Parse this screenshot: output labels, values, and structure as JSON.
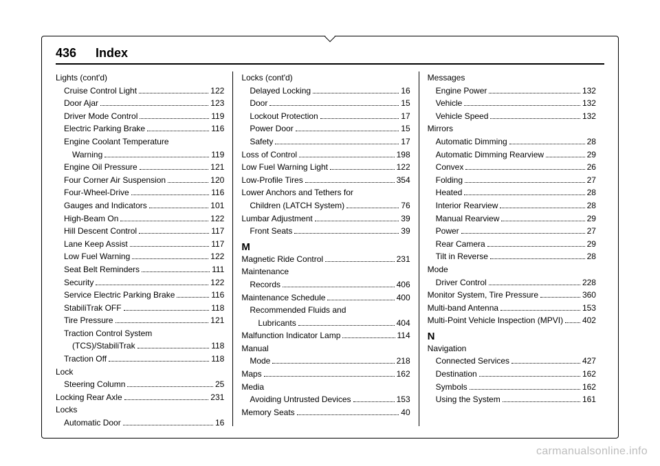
{
  "header": {
    "page_number": "436",
    "section": "Index"
  },
  "watermark": "carmanualsonline.info",
  "columns": [
    [
      {
        "type": "heading",
        "indent": 0,
        "label": "Lights (cont'd)"
      },
      {
        "indent": 1,
        "label": "Cruise Control Light",
        "page": "122"
      },
      {
        "indent": 1,
        "label": "Door Ajar",
        "page": "123"
      },
      {
        "indent": 1,
        "label": "Driver Mode Control",
        "page": "119"
      },
      {
        "indent": 1,
        "label": "Electric Parking Brake",
        "page": "116"
      },
      {
        "type": "heading",
        "indent": 1,
        "label": "Engine Coolant Temperature"
      },
      {
        "indent": 2,
        "label": "Warning",
        "page": "119"
      },
      {
        "indent": 1,
        "label": "Engine Oil Pressure",
        "page": "121"
      },
      {
        "indent": 1,
        "label": "Four Corner Air Suspension",
        "page": "120"
      },
      {
        "indent": 1,
        "label": "Four-Wheel-Drive",
        "page": "116"
      },
      {
        "indent": 1,
        "label": "Gauges and Indicators",
        "page": "101"
      },
      {
        "indent": 1,
        "label": "High-Beam On",
        "page": "122"
      },
      {
        "indent": 1,
        "label": "Hill Descent Control",
        "page": "117"
      },
      {
        "indent": 1,
        "label": "Lane Keep Assist",
        "page": "117"
      },
      {
        "indent": 1,
        "label": "Low Fuel Warning",
        "page": "122"
      },
      {
        "indent": 1,
        "label": "Seat Belt Reminders",
        "page": "111"
      },
      {
        "indent": 1,
        "label": "Security",
        "page": "122"
      },
      {
        "indent": 1,
        "label": "Service Electric Parking Brake",
        "page": "116"
      },
      {
        "indent": 1,
        "label": "StabiliTrak OFF",
        "page": "118"
      },
      {
        "indent": 1,
        "label": "Tire Pressure",
        "page": "121"
      },
      {
        "type": "heading",
        "indent": 1,
        "label": "Traction Control System"
      },
      {
        "indent": 2,
        "label": "(TCS)/StabiliTrak",
        "page": "118"
      },
      {
        "indent": 1,
        "label": "Traction Off",
        "page": "118"
      },
      {
        "type": "heading",
        "indent": 0,
        "label": "Lock"
      },
      {
        "indent": 1,
        "label": "Steering Column",
        "page": "25"
      },
      {
        "indent": 0,
        "label": "Locking Rear Axle",
        "page": "231"
      },
      {
        "type": "heading",
        "indent": 0,
        "label": "Locks"
      },
      {
        "indent": 1,
        "label": "Automatic Door",
        "page": "16"
      }
    ],
    [
      {
        "type": "heading",
        "indent": 0,
        "label": "Locks (cont'd)"
      },
      {
        "indent": 1,
        "label": "Delayed Locking",
        "page": "16"
      },
      {
        "indent": 1,
        "label": "Door",
        "page": "15"
      },
      {
        "indent": 1,
        "label": "Lockout Protection",
        "page": "17"
      },
      {
        "indent": 1,
        "label": "Power Door",
        "page": "15"
      },
      {
        "indent": 1,
        "label": "Safety",
        "page": "17"
      },
      {
        "indent": 0,
        "label": "Loss of Control",
        "page": "198"
      },
      {
        "indent": 0,
        "label": "Low Fuel Warning Light",
        "page": "122"
      },
      {
        "indent": 0,
        "label": "Low-Profile Tires",
        "page": "354"
      },
      {
        "type": "heading",
        "indent": 0,
        "label": "Lower Anchors and Tethers for"
      },
      {
        "indent": 1,
        "label": "Children (LATCH System)",
        "page": "76"
      },
      {
        "indent": 0,
        "label": "Lumbar Adjustment",
        "page": "39"
      },
      {
        "indent": 1,
        "label": "Front Seats",
        "page": "39"
      },
      {
        "type": "letter",
        "label": "M"
      },
      {
        "indent": 0,
        "label": "Magnetic Ride Control",
        "page": "231"
      },
      {
        "type": "heading",
        "indent": 0,
        "label": "Maintenance"
      },
      {
        "indent": 1,
        "label": "Records",
        "page": "406"
      },
      {
        "indent": 0,
        "label": "Maintenance Schedule",
        "page": "400"
      },
      {
        "type": "heading",
        "indent": 1,
        "label": "Recommended Fluids and"
      },
      {
        "indent": 2,
        "label": "Lubricants",
        "page": "404"
      },
      {
        "indent": 0,
        "label": "Malfunction Indicator Lamp",
        "page": "114"
      },
      {
        "type": "heading",
        "indent": 0,
        "label": "Manual"
      },
      {
        "indent": 1,
        "label": "Mode",
        "page": "218"
      },
      {
        "indent": 0,
        "label": "Maps",
        "page": "162"
      },
      {
        "type": "heading",
        "indent": 0,
        "label": "Media"
      },
      {
        "indent": 1,
        "label": "Avoiding Untrusted Devices",
        "page": "153"
      },
      {
        "indent": 0,
        "label": "Memory Seats",
        "page": "40"
      }
    ],
    [
      {
        "type": "heading",
        "indent": 0,
        "label": "Messages"
      },
      {
        "indent": 1,
        "label": "Engine Power",
        "page": "132"
      },
      {
        "indent": 1,
        "label": "Vehicle",
        "page": "132"
      },
      {
        "indent": 1,
        "label": "Vehicle Speed",
        "page": "132"
      },
      {
        "type": "heading",
        "indent": 0,
        "label": "Mirrors"
      },
      {
        "indent": 1,
        "label": "Automatic Dimming",
        "page": "28"
      },
      {
        "indent": 1,
        "label": "Automatic Dimming Rearview",
        "page": "29"
      },
      {
        "indent": 1,
        "label": "Convex",
        "page": "26"
      },
      {
        "indent": 1,
        "label": "Folding",
        "page": "27"
      },
      {
        "indent": 1,
        "label": "Heated",
        "page": "28"
      },
      {
        "indent": 1,
        "label": "Interior Rearview",
        "page": "28"
      },
      {
        "indent": 1,
        "label": "Manual Rearview",
        "page": "29"
      },
      {
        "indent": 1,
        "label": "Power",
        "page": "27"
      },
      {
        "indent": 1,
        "label": "Rear Camera",
        "page": "29"
      },
      {
        "indent": 1,
        "label": "Tilt in Reverse",
        "page": "28"
      },
      {
        "type": "heading",
        "indent": 0,
        "label": "Mode"
      },
      {
        "indent": 1,
        "label": "Driver Control",
        "page": "228"
      },
      {
        "indent": 0,
        "label": "Monitor System, Tire Pressure",
        "page": "360"
      },
      {
        "indent": 0,
        "label": "Multi-band Antenna",
        "page": "153"
      },
      {
        "indent": 0,
        "label": "Multi-Point Vehicle Inspection (MPVI)",
        "page": "402"
      },
      {
        "type": "letter",
        "label": "N"
      },
      {
        "type": "heading",
        "indent": 0,
        "label": "Navigation"
      },
      {
        "indent": 1,
        "label": "Connected Services",
        "page": "427"
      },
      {
        "indent": 1,
        "label": "Destination",
        "page": "162"
      },
      {
        "indent": 1,
        "label": "Symbols",
        "page": "162"
      },
      {
        "indent": 1,
        "label": "Using the System",
        "page": "161"
      }
    ]
  ]
}
